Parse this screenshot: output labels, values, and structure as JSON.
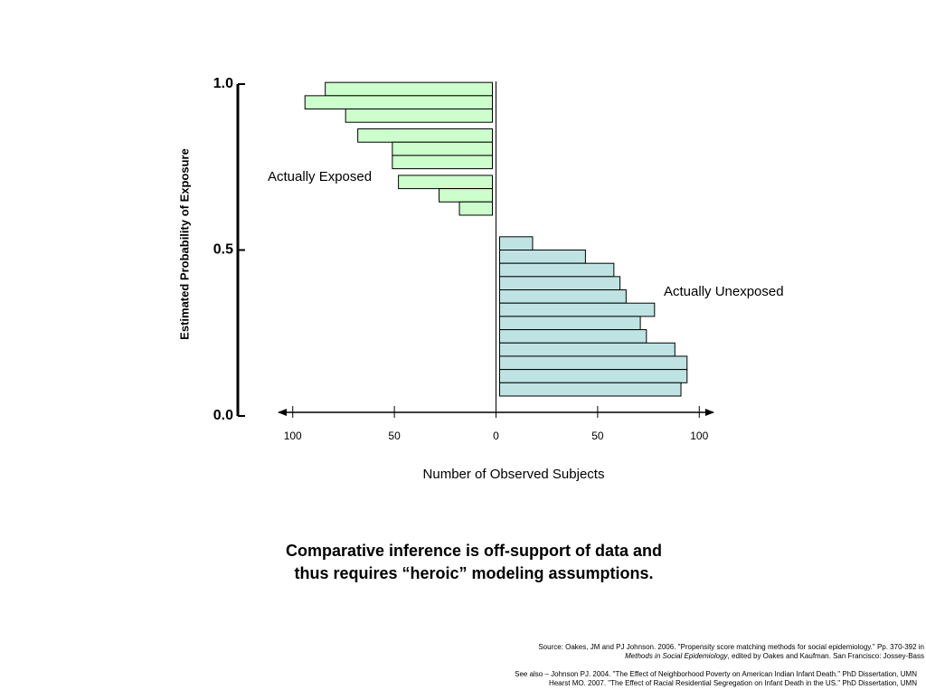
{
  "chart_data": {
    "type": "mirrored-histogram",
    "ylabel": "Estimated Probability of Exposure",
    "xlabel": "Number of Observed Subjects",
    "ylim": [
      0,
      1
    ],
    "yticks": [
      {
        "value": 0,
        "label": "0.0"
      },
      0.5,
      {
        "value": 1,
        "label": "1.0"
      }
    ],
    "xlim": [
      -107,
      107
    ],
    "xticks": [
      {
        "value": -100,
        "label": "100"
      },
      {
        "value": -50,
        "label": "50"
      },
      0,
      50,
      100
    ],
    "series": [
      {
        "name": "Actually Exposed",
        "side": "left",
        "color": "#ccffcc",
        "bins": [
          [
            0.965,
            1.005
          ],
          [
            0.925,
            0.965
          ],
          [
            0.885,
            0.925
          ],
          [
            0.825,
            0.865
          ],
          [
            0.785,
            0.825
          ],
          [
            0.745,
            0.785
          ],
          [
            0.685,
            0.725
          ],
          [
            0.645,
            0.685
          ],
          [
            0.605,
            0.645
          ]
        ],
        "values": [
          84,
          94,
          74,
          68,
          51,
          51,
          48,
          28,
          18
        ]
      },
      {
        "name": "Actually Unexposed",
        "side": "right",
        "color": "#bfe3e3",
        "bins": [
          [
            0.5,
            0.54
          ],
          [
            0.46,
            0.5
          ],
          [
            0.42,
            0.46
          ],
          [
            0.38,
            0.42
          ],
          [
            0.34,
            0.38
          ],
          [
            0.3,
            0.34
          ],
          [
            0.26,
            0.3
          ],
          [
            0.22,
            0.26
          ],
          [
            0.18,
            0.22
          ],
          [
            0.14,
            0.18
          ],
          [
            0.1,
            0.14
          ],
          [
            0.06,
            0.1
          ]
        ],
        "values": [
          18,
          44,
          58,
          61,
          64,
          78,
          71,
          74,
          88,
          94,
          94,
          91
        ]
      }
    ],
    "caption": [
      "Comparative inference is off-support of data and",
      "thus requires “heroic” modeling assumptions."
    ],
    "source": [
      [
        "Source: Oakes, JM and PJ Johnson. 2006. \"Propensity score matching methods for social epidemiology.\" Pp. 370-392 in"
      ],
      [
        "Methods in Social Epidemiology",
        ", edited by Oakes and Kaufman. San Francisco: Jossey-Bass"
      ],
      [
        "See also – Johnson PJ. 2004. \"The Effect of Neighborhood Poverty on American Indian Infant Death.\" PhD Dissertation, UMN"
      ],
      [
        "Hearst MO. 2007. \"The Effect of Racial Residential Segregation on Infant Death in the US.\" PhD Dissertation, UMN"
      ]
    ]
  }
}
